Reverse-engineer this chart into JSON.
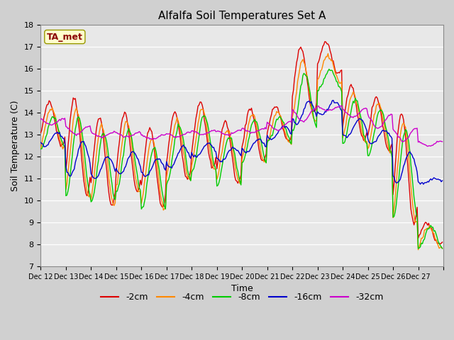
{
  "title": "Alfalfa Soil Temperatures Set A",
  "xlabel": "Time",
  "ylabel": "Soil Temperature (C)",
  "ylim": [
    7.0,
    18.0
  ],
  "yticks": [
    7.0,
    8.0,
    9.0,
    10.0,
    11.0,
    12.0,
    13.0,
    14.0,
    15.0,
    16.0,
    17.0,
    18.0
  ],
  "annotation_text": "TA_met",
  "annotation_color": "#8b0000",
  "annotation_bg": "#ffffcc",
  "series": {
    "-2cm": {
      "color": "#dd0000"
    },
    "-4cm": {
      "color": "#ff8800"
    },
    "-8cm": {
      "color": "#00cc00"
    },
    "-16cm": {
      "color": "#0000cc"
    },
    "-32cm": {
      "color": "#cc00cc"
    }
  },
  "x_labels": [
    "Dec 12",
    "Dec 13",
    "Dec 14",
    "Dec 15",
    "Dec 16",
    "Dec 17",
    "Dec 18",
    "Dec 19",
    "Dec 20",
    "Dec 21",
    "Dec 22",
    "Dec 23",
    "Dec 24",
    "Dec 25",
    "Dec 26",
    "Dec 27"
  ],
  "n_days": 16,
  "pts_per_day": 24
}
